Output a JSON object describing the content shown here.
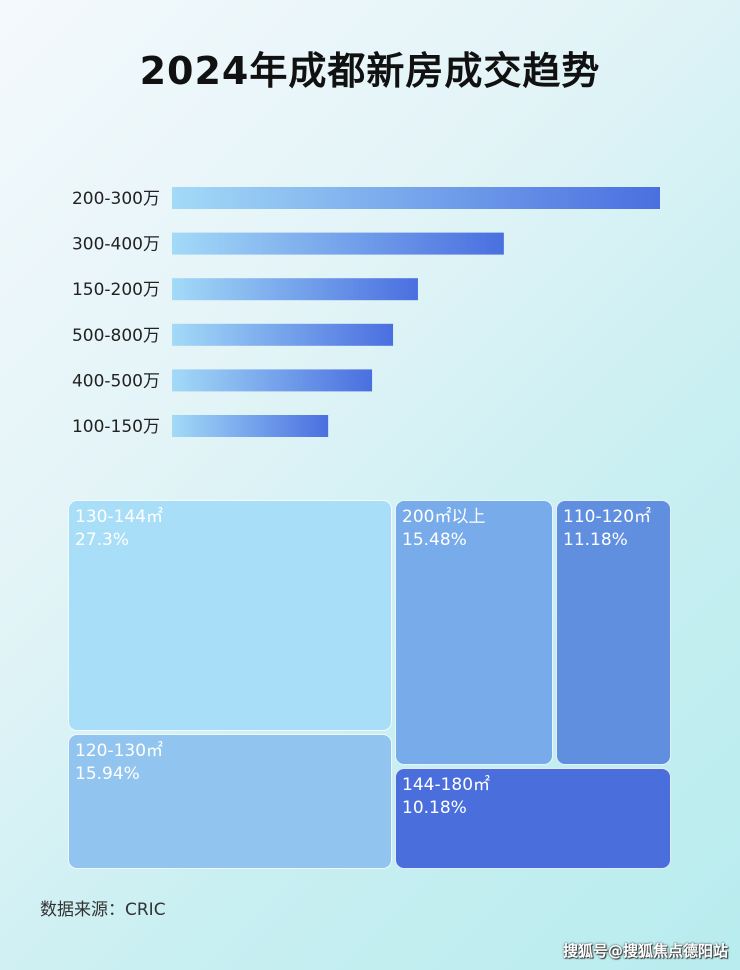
{
  "chart_data": [
    {
      "type": "bar",
      "orientation": "horizontal",
      "title": "2024年成都新房成交趋势",
      "categories": [
        "200-300万",
        "300-400万",
        "150-200万",
        "500-800万",
        "400-500万",
        "100-150万"
      ],
      "values": [
        100,
        68,
        50.4,
        45.3,
        41,
        32
      ],
      "value_note": "relative bar lengths, no values printed",
      "colors": {
        "start": "#9fd6f6",
        "end": "#4a6fe0"
      }
    },
    {
      "type": "treemap",
      "tiles": [
        {
          "label": "130-144㎡",
          "value_label": "27.3%",
          "value": 27.3,
          "color": "#a8def7"
        },
        {
          "label": "120-130㎡",
          "value_label": "15.94%",
          "value": 15.94,
          "color": "#91c5ef"
        },
        {
          "label": "200㎡以上",
          "value_label": "15.48%",
          "value": 15.48,
          "color": "#78abe9"
        },
        {
          "label": "110-120㎡",
          "value_label": "11.18%",
          "value": 11.18,
          "color": "#608fe0"
        },
        {
          "label": "144-180㎡",
          "value_label": "10.18%",
          "value": 10.18,
          "color": "#4a6fdd"
        }
      ]
    }
  ],
  "source": "数据来源：CRIC",
  "watermark": "搜狐号@搜狐焦点德阳站"
}
